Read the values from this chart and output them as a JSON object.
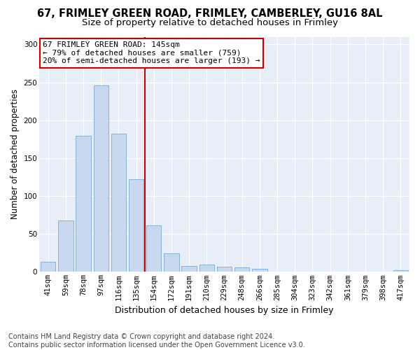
{
  "title": "67, FRIMLEY GREEN ROAD, FRIMLEY, CAMBERLEY, GU16 8AL",
  "subtitle": "Size of property relative to detached houses in Frimley",
  "xlabel": "Distribution of detached houses by size in Frimley",
  "ylabel": "Number of detached properties",
  "categories": [
    "41sqm",
    "59sqm",
    "78sqm",
    "97sqm",
    "116sqm",
    "135sqm",
    "154sqm",
    "172sqm",
    "191sqm",
    "210sqm",
    "229sqm",
    "248sqm",
    "266sqm",
    "285sqm",
    "304sqm",
    "323sqm",
    "342sqm",
    "361sqm",
    "379sqm",
    "398sqm",
    "417sqm"
  ],
  "values": [
    13,
    68,
    179,
    246,
    182,
    122,
    61,
    24,
    8,
    10,
    7,
    6,
    4,
    0,
    0,
    0,
    0,
    0,
    0,
    0,
    2
  ],
  "bar_color": "#c8d8ee",
  "bar_edge_color": "#7aaad4",
  "vline_color": "#cc0000",
  "vline_pos": 5.5,
  "annotation_text": "67 FRIMLEY GREEN ROAD: 145sqm\n← 79% of detached houses are smaller (759)\n20% of semi-detached houses are larger (193) →",
  "annotation_box_facecolor": "#ffffff",
  "annotation_box_edgecolor": "#cc0000",
  "ylim": [
    0,
    310
  ],
  "yticks": [
    0,
    50,
    100,
    150,
    200,
    250,
    300
  ],
  "footnote": "Contains HM Land Registry data © Crown copyright and database right 2024.\nContains public sector information licensed under the Open Government Licence v3.0.",
  "fig_bg_color": "#ffffff",
  "plot_bg_color": "#e8eef8",
  "title_fontsize": 10.5,
  "subtitle_fontsize": 9.5,
  "xlabel_fontsize": 9,
  "ylabel_fontsize": 8.5,
  "tick_fontsize": 7.5,
  "annotation_fontsize": 8,
  "footnote_fontsize": 7
}
